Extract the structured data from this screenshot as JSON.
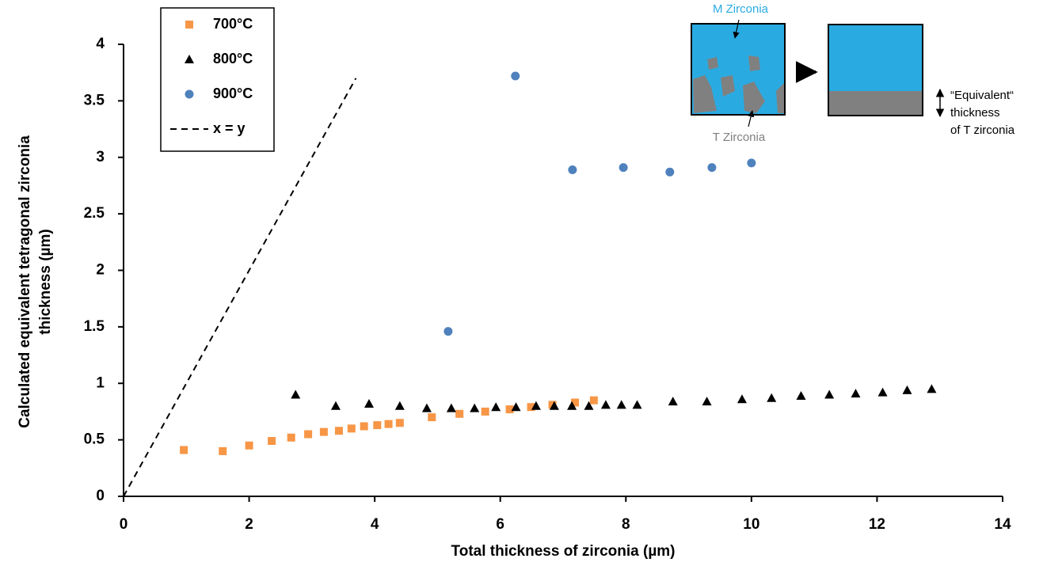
{
  "chart_data": {
    "type": "scatter",
    "x_label": "Total thickness of zirconia (µm)",
    "y_label": [
      "Calculated equivalent tetragonal zirconia",
      "thickness (µm)"
    ],
    "xlim": [
      0,
      14
    ],
    "xticks": [
      0,
      2,
      4,
      6,
      8,
      10,
      12,
      14
    ],
    "ylim": [
      0,
      4
    ],
    "yticks": [
      0,
      0.5,
      1,
      1.5,
      2,
      2.5,
      3,
      3.5,
      4
    ],
    "legend": "top-left",
    "series": [
      {
        "name": "700°C",
        "color": "#f79646",
        "marker": "square",
        "x": [
          0.96,
          1.58,
          2.0,
          2.36,
          2.67,
          2.94,
          3.19,
          3.43,
          3.63,
          3.83,
          4.04,
          4.22,
          4.4,
          4.91,
          5.35,
          5.76,
          6.15,
          6.49,
          6.83,
          7.19,
          7.49
        ],
        "values": [
          0.41,
          0.4,
          0.45,
          0.49,
          0.52,
          0.55,
          0.57,
          0.58,
          0.6,
          0.62,
          0.63,
          0.64,
          0.65,
          0.7,
          0.73,
          0.75,
          0.77,
          0.79,
          0.81,
          0.83,
          0.85
        ]
      },
      {
        "name": "800°C",
        "color": "#000000",
        "marker": "triangle",
        "x": [
          2.74,
          3.38,
          3.91,
          4.4,
          4.83,
          5.22,
          5.59,
          5.93,
          6.25,
          6.57,
          6.86,
          7.14,
          7.41,
          7.68,
          7.93,
          8.18,
          8.75,
          9.29,
          9.85,
          10.32,
          10.79,
          11.24,
          11.66,
          12.09,
          12.48,
          12.87
        ],
        "values": [
          0.9,
          0.8,
          0.82,
          0.8,
          0.78,
          0.78,
          0.78,
          0.79,
          0.79,
          0.8,
          0.8,
          0.8,
          0.8,
          0.81,
          0.81,
          0.81,
          0.84,
          0.84,
          0.86,
          0.87,
          0.89,
          0.9,
          0.91,
          0.92,
          0.94,
          0.95
        ]
      },
      {
        "name": "900°C",
        "color": "#4f81bd",
        "marker": "circle",
        "x": [
          5.17,
          6.24,
          7.15,
          7.96,
          8.7,
          9.37,
          10.0
        ],
        "values": [
          1.46,
          3.72,
          2.89,
          2.91,
          2.87,
          2.91,
          2.95
        ]
      },
      {
        "name": "x = y",
        "color": "#000000",
        "line_style": "dashed",
        "x": [
          0,
          3.7
        ],
        "values": [
          0,
          3.7
        ]
      }
    ]
  },
  "inset": {
    "m_label": "M Zirconia",
    "t_label": "T Zirconia",
    "equiv_label": [
      "“Equivalent“",
      "thickness",
      "of T zirconia"
    ]
  }
}
